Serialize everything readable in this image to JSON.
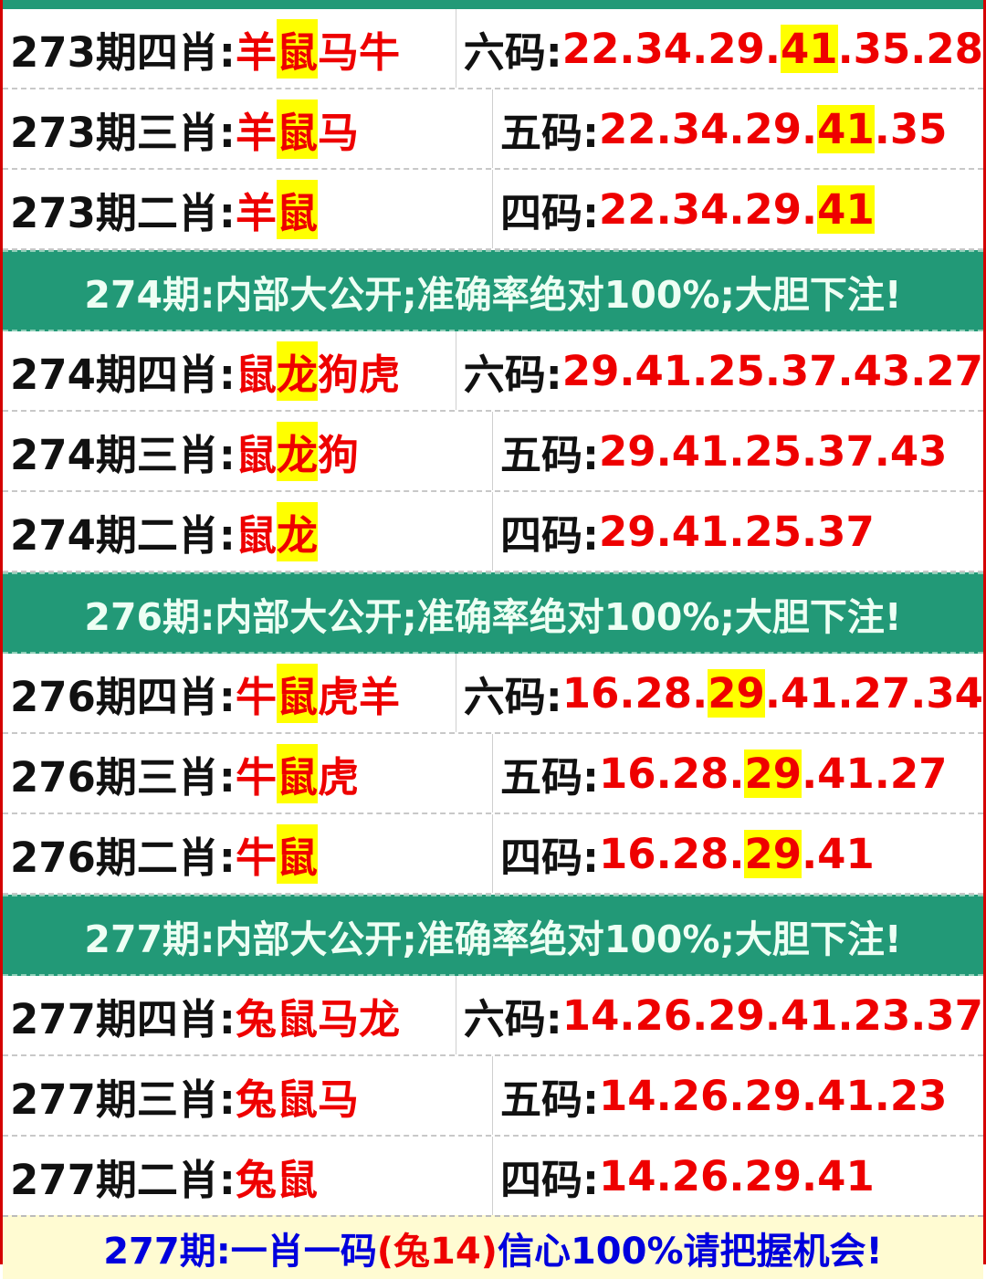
{
  "colors": {
    "header_bg": "#229977",
    "text_red": "#ee0000",
    "highlight": "#ffff00",
    "footer_bg": "#fffbd2",
    "footer_text": "#0000dd",
    "border": "#d40000"
  },
  "sections": [
    {
      "header": null,
      "rows": [
        {
          "left": [
            {
              "t": "273期四肖:",
              "c": "blk"
            },
            {
              "t": "羊",
              "c": "red"
            },
            {
              "t": "鼠",
              "c": "red",
              "hl": true
            },
            {
              "t": "马牛",
              "c": "red"
            }
          ],
          "right": [
            {
              "t": "六码:",
              "c": "blk"
            },
            {
              "t": "22.34.29.",
              "c": "red"
            },
            {
              "t": "41",
              "c": "red",
              "hl": true
            },
            {
              "t": ".35.28",
              "c": "red"
            }
          ]
        },
        {
          "left": [
            {
              "t": "273期三肖:",
              "c": "blk"
            },
            {
              "t": "羊",
              "c": "red"
            },
            {
              "t": "鼠",
              "c": "red",
              "hl": true
            },
            {
              "t": "马",
              "c": "red"
            }
          ],
          "right": [
            {
              "t": "五码:",
              "c": "blk"
            },
            {
              "t": "22.34.29.",
              "c": "red"
            },
            {
              "t": "41",
              "c": "red",
              "hl": true
            },
            {
              "t": ".35",
              "c": "red"
            }
          ]
        },
        {
          "left": [
            {
              "t": "273期二肖:",
              "c": "blk"
            },
            {
              "t": "羊",
              "c": "red"
            },
            {
              "t": "鼠",
              "c": "red",
              "hl": true
            }
          ],
          "right": [
            {
              "t": "四码:",
              "c": "blk"
            },
            {
              "t": "22.34.29.",
              "c": "red"
            },
            {
              "t": "41",
              "c": "red",
              "hl": true
            }
          ]
        }
      ]
    },
    {
      "header": "274期:内部大公开;准确率绝对100%;大胆下注!",
      "rows": [
        {
          "left": [
            {
              "t": "274期四肖:",
              "c": "blk"
            },
            {
              "t": "鼠",
              "c": "red"
            },
            {
              "t": "龙",
              "c": "red",
              "hl": true
            },
            {
              "t": "狗虎",
              "c": "red"
            }
          ],
          "right": [
            {
              "t": "六码:",
              "c": "blk"
            },
            {
              "t": "29.41.25.37.43.27",
              "c": "red"
            }
          ]
        },
        {
          "left": [
            {
              "t": "274期三肖:",
              "c": "blk"
            },
            {
              "t": "鼠",
              "c": "red"
            },
            {
              "t": "龙",
              "c": "red",
              "hl": true
            },
            {
              "t": "狗",
              "c": "red"
            }
          ],
          "right": [
            {
              "t": "五码:",
              "c": "blk"
            },
            {
              "t": "29.41.25.37.43",
              "c": "red"
            }
          ]
        },
        {
          "left": [
            {
              "t": "274期二肖:",
              "c": "blk"
            },
            {
              "t": "鼠",
              "c": "red"
            },
            {
              "t": "龙",
              "c": "red",
              "hl": true
            }
          ],
          "right": [
            {
              "t": "四码:",
              "c": "blk"
            },
            {
              "t": "29.41.25.37",
              "c": "red"
            }
          ]
        }
      ]
    },
    {
      "header": "276期:内部大公开;准确率绝对100%;大胆下注!",
      "rows": [
        {
          "left": [
            {
              "t": "276期四肖:",
              "c": "blk"
            },
            {
              "t": "牛",
              "c": "red"
            },
            {
              "t": "鼠",
              "c": "red",
              "hl": true
            },
            {
              "t": "虎羊",
              "c": "red"
            }
          ],
          "right": [
            {
              "t": "六码:",
              "c": "blk"
            },
            {
              "t": "16.28.",
              "c": "red"
            },
            {
              "t": "29",
              "c": "red",
              "hl": true
            },
            {
              "t": ".41.27.34",
              "c": "red"
            }
          ]
        },
        {
          "left": [
            {
              "t": "276期三肖:",
              "c": "blk"
            },
            {
              "t": "牛",
              "c": "red"
            },
            {
              "t": "鼠",
              "c": "red",
              "hl": true
            },
            {
              "t": "虎",
              "c": "red"
            }
          ],
          "right": [
            {
              "t": "五码:",
              "c": "blk"
            },
            {
              "t": "16.28.",
              "c": "red"
            },
            {
              "t": "29",
              "c": "red",
              "hl": true
            },
            {
              "t": ".41.27",
              "c": "red"
            }
          ]
        },
        {
          "left": [
            {
              "t": "276期二肖:",
              "c": "blk"
            },
            {
              "t": "牛",
              "c": "red"
            },
            {
              "t": "鼠",
              "c": "red",
              "hl": true
            }
          ],
          "right": [
            {
              "t": "四码:",
              "c": "blk"
            },
            {
              "t": "16.28.",
              "c": "red"
            },
            {
              "t": "29",
              "c": "red",
              "hl": true
            },
            {
              "t": ".41",
              "c": "red"
            }
          ]
        }
      ]
    },
    {
      "header": "277期:内部大公开;准确率绝对100%;大胆下注!",
      "rows": [
        {
          "left": [
            {
              "t": "277期四肖:",
              "c": "blk"
            },
            {
              "t": "兔鼠马龙",
              "c": "red"
            }
          ],
          "right": [
            {
              "t": "六码:",
              "c": "blk"
            },
            {
              "t": "14.26.29.41.23.37",
              "c": "red"
            }
          ]
        },
        {
          "left": [
            {
              "t": "277期三肖:",
              "c": "blk"
            },
            {
              "t": "兔鼠马",
              "c": "red"
            }
          ],
          "right": [
            {
              "t": "五码:",
              "c": "blk"
            },
            {
              "t": "14.26.29.41.23",
              "c": "red"
            }
          ]
        },
        {
          "left": [
            {
              "t": "277期二肖:",
              "c": "blk"
            },
            {
              "t": "兔鼠",
              "c": "red"
            }
          ],
          "right": [
            {
              "t": "四码:",
              "c": "blk"
            },
            {
              "t": "14.26.29.41",
              "c": "red"
            }
          ]
        }
      ]
    }
  ],
  "footer": {
    "prefix": "277期:一肖一码",
    "highlight": "(兔14)",
    "suffix": "信心100%请把握机会!"
  }
}
